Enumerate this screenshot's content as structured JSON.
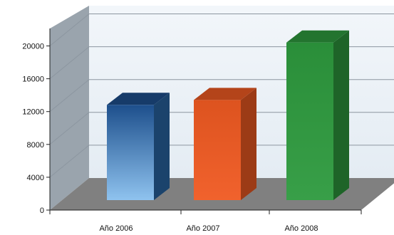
{
  "chart_data": {
    "type": "bar",
    "categories": [
      "Año 2006",
      "Año 2007",
      "Año 2008"
    ],
    "series": [
      {
        "values": [
          11600,
          12200,
          19200
        ]
      }
    ],
    "yticks": [
      0,
      4000,
      8000,
      12000,
      16000,
      20000
    ],
    "ylim": [
      0,
      20000
    ],
    "xlabel": "",
    "ylabel": "",
    "grid": true,
    "legend": "none",
    "colors": {
      "bars": [
        "#3b7fc4",
        "#f05a22",
        "#2e9a3e"
      ],
      "wall": "#e4ecf3",
      "side_wall": "#9aa4ad",
      "floor": "#808080",
      "grid": "#8c96a0"
    }
  }
}
